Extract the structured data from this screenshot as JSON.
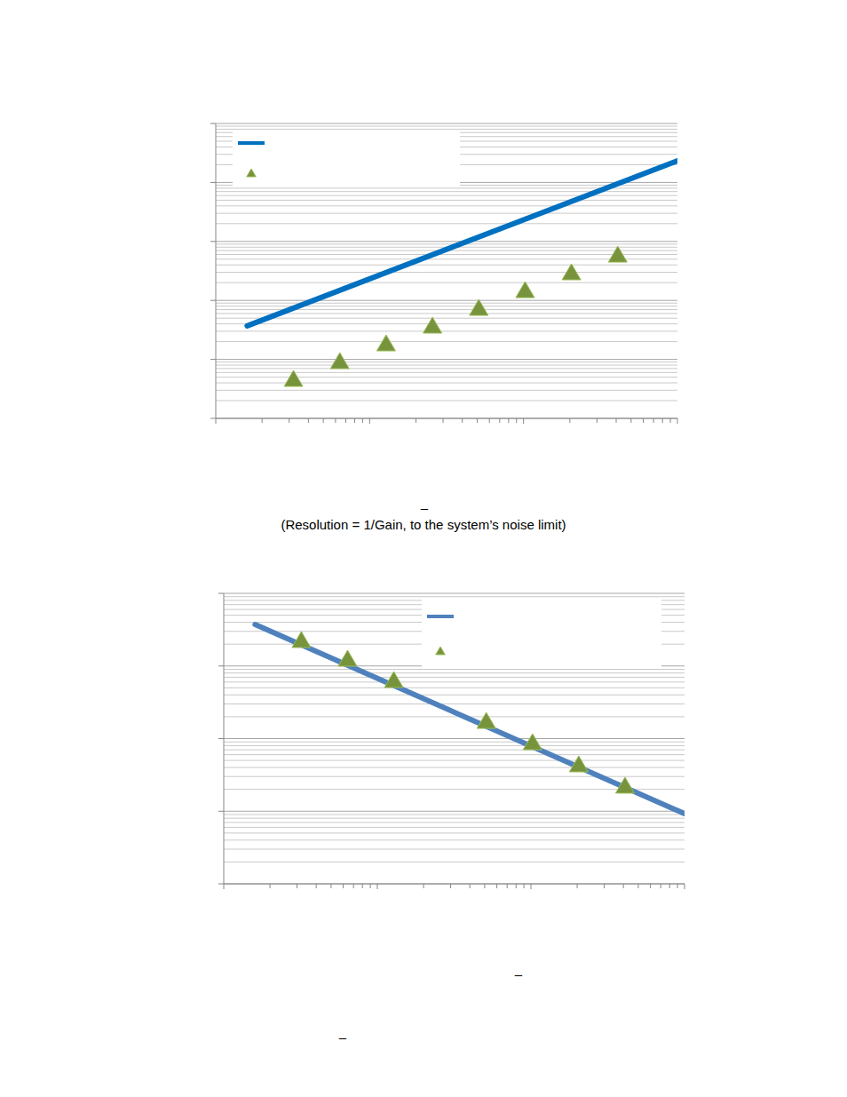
{
  "chart_data": [
    {
      "type": "line",
      "log": true,
      "grid": true,
      "legend": "top-left",
      "tick_labels": false,
      "xlim": [
        1,
        1000
      ],
      "xticks": [
        1,
        10,
        100,
        1000
      ],
      "ylim": [
        1,
        100000
      ],
      "yticks": [
        1,
        10,
        100,
        1000,
        10000,
        100000
      ],
      "series": [
        {
          "type": "line",
          "color": "#0070c0",
          "line_style": "solid",
          "x": [
            1.6,
            1000
          ],
          "values": [
            37,
            23300
          ]
        },
        {
          "type": "scatter",
          "color": "#77933c",
          "marker": "triangle",
          "x": [
            3.2,
            6.4,
            12.8,
            25.6,
            51.2,
            102.4,
            204.8,
            409.6
          ],
          "values": [
            4.6,
            9.2,
            18.4,
            36.8,
            73.6,
            147,
            295,
            589
          ]
        }
      ]
    },
    {
      "type": "line",
      "log": true,
      "grid": true,
      "legend": "top-right",
      "tick_labels": false,
      "xlim": [
        1,
        1000
      ],
      "xticks": [
        1,
        10,
        100,
        1000
      ],
      "ylim": [
        1,
        10000
      ],
      "yticks": [
        1,
        10,
        100,
        1000,
        10000
      ],
      "series": [
        {
          "type": "line",
          "color": "#4f81bd",
          "line_style": "solid",
          "x": [
            1.6,
            1000
          ],
          "values": [
            3730,
            9.25
          ]
        },
        {
          "type": "scatter",
          "color": "#77933c",
          "marker": "triangle",
          "x": [
            3.2,
            6.4,
            12.8,
            51.2,
            102.4,
            204.8,
            409.6
          ],
          "values": [
            2250,
            1245,
            633,
            173,
            88,
            43.6,
            22.2
          ]
        }
      ]
    }
  ],
  "captions": [
    "–",
    "(Resolution = 1/Gain, to the system’s noise limit)",
    "–",
    "–"
  ]
}
